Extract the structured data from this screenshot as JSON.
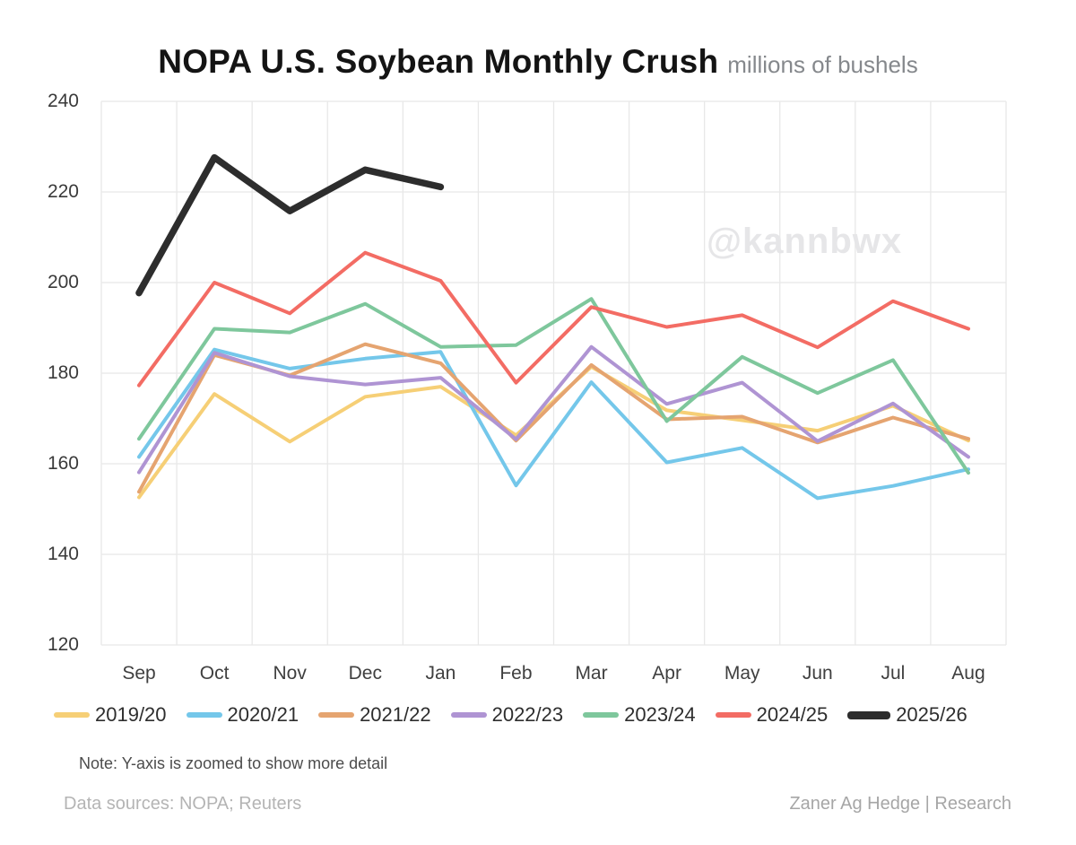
{
  "header": {
    "title": "NOPA U.S. Soybean Monthly Crush",
    "subtitle": "millions of bushels"
  },
  "watermark": "@kannbwx",
  "note": "Note: Y-axis is zoomed to show more detail",
  "footer": {
    "left": "Data sources: NOPA; Reuters",
    "right": "Zaner Ag Hedge | Research"
  },
  "chart_data": {
    "type": "line",
    "title": "NOPA U.S. Soybean Monthly Crush",
    "subtitle": "millions of bushels",
    "xlabel": "",
    "ylabel": "millions of bushels",
    "categories": [
      "Sep",
      "Oct",
      "Nov",
      "Dec",
      "Jan",
      "Feb",
      "Mar",
      "Apr",
      "May",
      "Jun",
      "Jul",
      "Aug"
    ],
    "ylim": [
      120,
      240
    ],
    "ytick_step": 20,
    "grid": true,
    "legend_position": "bottom",
    "series": [
      {
        "name": "2019/20",
        "color": "#f6cf76",
        "line_width": 4,
        "values": [
          152.6,
          175.4,
          164.9,
          174.8,
          177.0,
          166.3,
          181.4,
          171.8,
          169.6,
          167.3,
          172.8,
          165.1
        ]
      },
      {
        "name": "2020/21",
        "color": "#74c7ea",
        "line_width": 4,
        "values": [
          161.5,
          185.2,
          181.0,
          183.2,
          184.7,
          155.2,
          178.0,
          160.3,
          163.5,
          152.4,
          155.1,
          158.8
        ]
      },
      {
        "name": "2021/22",
        "color": "#e5a470",
        "line_width": 4,
        "values": [
          153.8,
          184.0,
          179.5,
          186.4,
          182.2,
          165.1,
          181.8,
          169.8,
          170.4,
          164.7,
          170.2,
          165.5
        ]
      },
      {
        "name": "2022/23",
        "color": "#af94d3",
        "line_width": 4,
        "values": [
          158.1,
          184.5,
          179.3,
          177.5,
          179.0,
          165.4,
          185.8,
          173.2,
          177.9,
          165.0,
          173.3,
          161.5
        ]
      },
      {
        "name": "2023/24",
        "color": "#7ec79c",
        "line_width": 4,
        "values": [
          165.5,
          189.8,
          189.0,
          195.3,
          185.8,
          186.2,
          196.4,
          169.4,
          183.6,
          175.6,
          182.9,
          158.0
        ]
      },
      {
        "name": "2024/25",
        "color": "#f36c64",
        "line_width": 4,
        "values": [
          177.3,
          200.0,
          193.2,
          206.6,
          200.4,
          177.9,
          194.6,
          190.2,
          192.8,
          185.7,
          195.9,
          189.8
        ]
      },
      {
        "name": "2025/26",
        "color": "#2d2d2d",
        "line_width": 7.5,
        "values": [
          197.7,
          227.6,
          215.8,
          224.9,
          221.1,
          null,
          null,
          null,
          null,
          null,
          null,
          null
        ]
      }
    ],
    "grid_color": "#e8e8e8"
  }
}
